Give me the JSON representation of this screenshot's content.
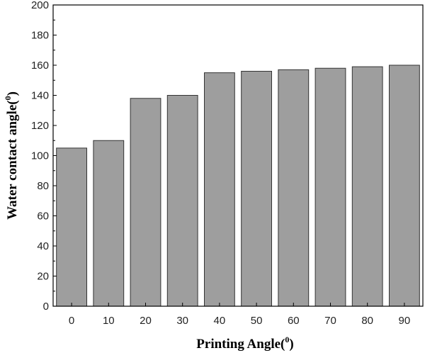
{
  "chart_data": {
    "type": "bar",
    "categories": [
      "0",
      "10",
      "20",
      "30",
      "40",
      "50",
      "60",
      "70",
      "80",
      "90"
    ],
    "values": [
      105,
      110,
      138,
      140,
      155,
      156,
      157,
      158,
      159,
      160
    ],
    "xlabel": "Printing Angle(",
    "xlabel_sup": "0",
    "xlabel_close": ")",
    "ylabel": "Water contact angle(",
    "ylabel_sup": "0",
    "ylabel_close": ")",
    "ylim": [
      0,
      200
    ],
    "yticks": [
      0,
      20,
      40,
      60,
      80,
      100,
      120,
      140,
      160,
      180,
      200
    ],
    "grid": false,
    "bar_color": "#9e9e9e",
    "bar_edge_color": "#333333"
  }
}
